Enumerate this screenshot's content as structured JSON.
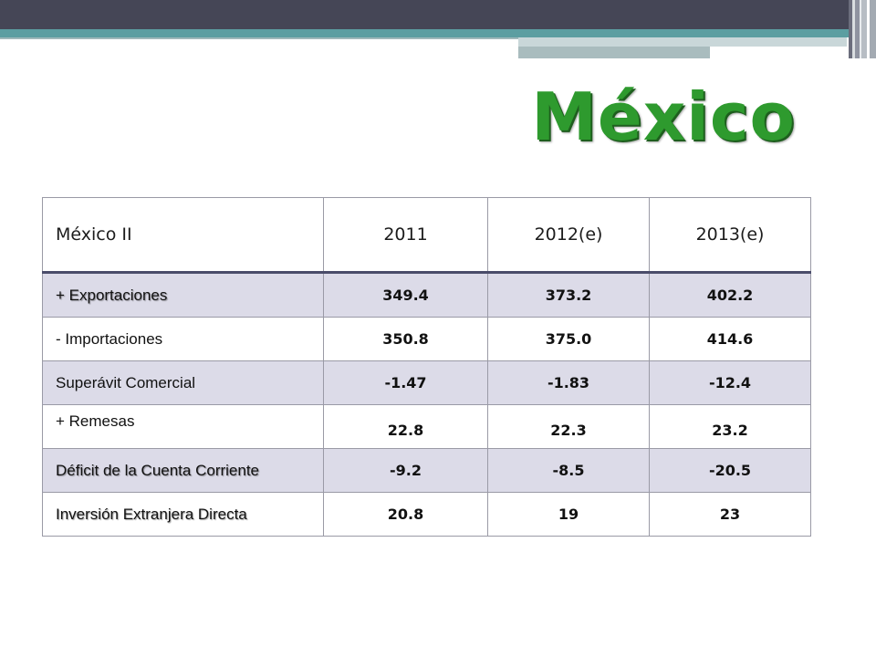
{
  "title": "México",
  "table": {
    "headers": [
      "México II",
      "2011",
      "2012(e)",
      "2013(e)"
    ],
    "rows": [
      {
        "label": "+ Exportaciones",
        "values": [
          "349.4",
          "373.2",
          "402.2"
        ]
      },
      {
        "label": "- Importaciones",
        "values": [
          "350.8",
          "375.0",
          "414.6"
        ]
      },
      {
        "label": "Superávit Comercial",
        "values": [
          "-1.47",
          "-1.83",
          "-12.4"
        ]
      },
      {
        "label": "+ Remesas",
        "values": [
          "22.8",
          "22.3",
          "23.2"
        ]
      },
      {
        "label": "Déficit de la Cuenta Corriente",
        "values": [
          "-9.2",
          "-8.5",
          "-20.5"
        ]
      },
      {
        "label": "Inversión Extranjera Directa",
        "values": [
          "20.8",
          "19",
          "23"
        ]
      }
    ]
  },
  "colors": {
    "title_green": "#2e9a2e",
    "header_band": "#454656",
    "accent_teal": "#5c9ea1",
    "row_shade": "#dcdbe8",
    "header_rule": "#4a4c6a"
  }
}
